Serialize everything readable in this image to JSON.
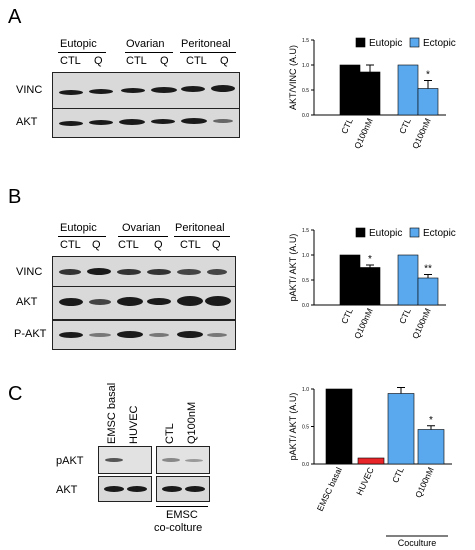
{
  "panels": {
    "A": {
      "letter": "A",
      "groups": [
        "Eutopic",
        "Ovarian",
        "Peritoneal"
      ],
      "lanes": [
        "CTL",
        "Q",
        "CTL",
        "Q",
        "CTL",
        "Q"
      ],
      "rows": [
        "VINC",
        "AKT"
      ]
    },
    "B": {
      "letter": "B",
      "groups": [
        "Eutopic",
        "Ovarian",
        "Peritoneal"
      ],
      "lanes": [
        "CTL",
        "Q",
        "CTL",
        "Q",
        "CTL",
        "Q"
      ],
      "rows": [
        "VINC",
        "AKT",
        "P-AKT"
      ]
    },
    "C": {
      "letter": "C",
      "lanes": [
        "EMSC basal",
        "HUVEC",
        "CTL",
        "Q100nM"
      ],
      "rows": [
        "pAKT",
        "AKT"
      ],
      "group_label_line1": "EMSC",
      "group_label_line2": "co-colture"
    }
  },
  "colors": {
    "black": "#000000",
    "blue": "#5aa9ee",
    "red": "#e8262a"
  },
  "chart_data": [
    {
      "type": "bar",
      "panel": "A",
      "ylabel": "AKT/VINC (A.U)",
      "ylim": [
        0,
        1.5
      ],
      "yticks": [
        "0.0",
        "0.5",
        "1.0",
        "1.5"
      ],
      "categories": [
        "CTL",
        "Q100nM",
        "CTL",
        "Q100nM"
      ],
      "values": [
        1.0,
        0.86,
        1.0,
        0.53
      ],
      "errors": [
        0,
        0.14,
        0,
        0.16
      ],
      "bar_colors": [
        "black",
        "black",
        "blue",
        "blue"
      ],
      "significance": [
        "",
        "",
        "",
        "*"
      ],
      "legend": [
        {
          "name": "Eutopic",
          "color": "black"
        },
        {
          "name": "Ectopic",
          "color": "blue"
        }
      ],
      "legend_position": "top"
    },
    {
      "type": "bar",
      "panel": "B",
      "ylabel": "pAKT/ AKT (A.U)",
      "ylim": [
        0,
        1.5
      ],
      "yticks": [
        "0.0",
        "0.5",
        "1.0",
        "1.5"
      ],
      "categories": [
        "CTL",
        "Q100nM",
        "CTL",
        "Q100nM"
      ],
      "values": [
        1.0,
        0.75,
        1.0,
        0.54
      ],
      "errors": [
        0,
        0.05,
        0,
        0.07
      ],
      "bar_colors": [
        "black",
        "black",
        "blue",
        "blue"
      ],
      "significance": [
        "",
        "*",
        "",
        "**"
      ],
      "legend": [
        {
          "name": "Eutopic",
          "color": "black"
        },
        {
          "name": "Ectopic",
          "color": "blue"
        }
      ],
      "legend_position": "top"
    },
    {
      "type": "bar",
      "panel": "C",
      "ylabel": "pAKT/ AKT (A.U)",
      "ylim": [
        0,
        1.0
      ],
      "yticks": [
        "0.0",
        "0.5",
        "1.0"
      ],
      "categories": [
        "EMSC basal",
        "HUVEC",
        "CTL",
        "Q100nM"
      ],
      "values": [
        1.0,
        0.08,
        0.94,
        0.46
      ],
      "errors": [
        0,
        0,
        0.08,
        0.05
      ],
      "bar_colors": [
        "black",
        "red",
        "blue",
        "blue"
      ],
      "significance": [
        "",
        "",
        "",
        "*"
      ],
      "group_label": "Coculture"
    }
  ]
}
